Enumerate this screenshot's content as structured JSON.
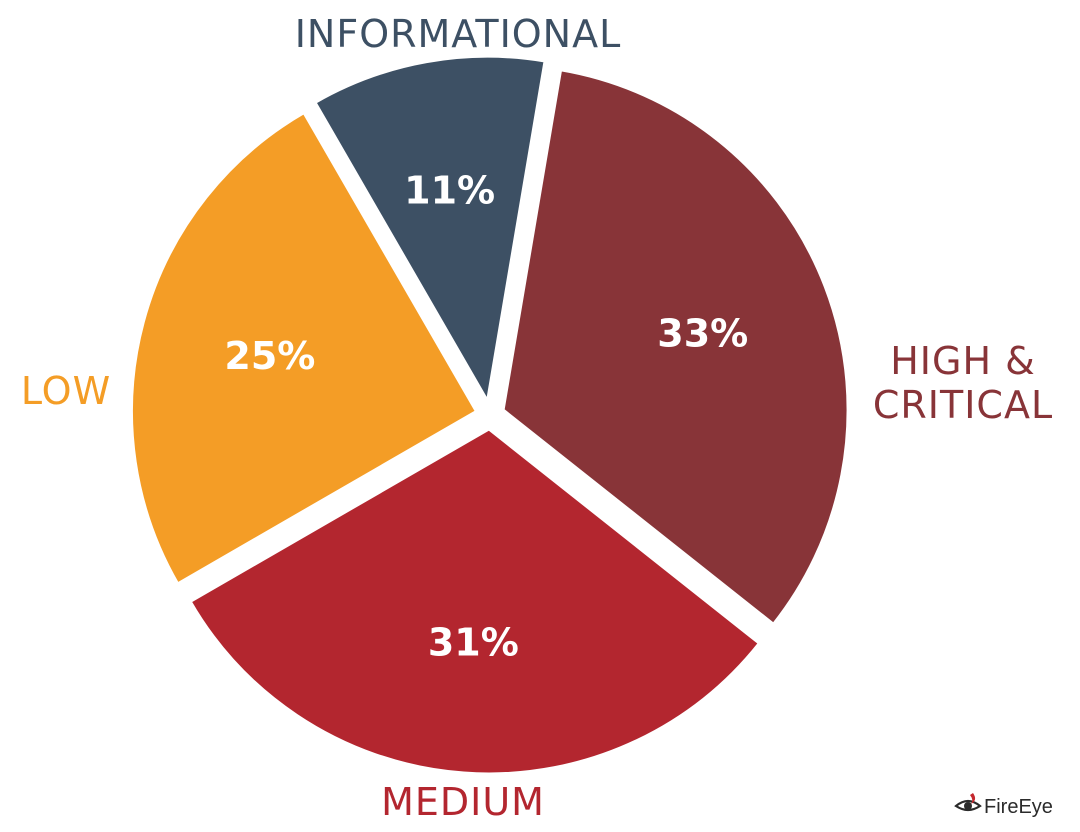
{
  "chart_data": {
    "type": "pie",
    "categories": [
      "INFORMATIONAL",
      "HIGH & CRITICAL",
      "MEDIUM",
      "LOW"
    ],
    "values": [
      11,
      33,
      31,
      25
    ],
    "value_labels": [
      "11%",
      "33%",
      "31%",
      "25%"
    ],
    "colors": [
      "#3d5064",
      "#883438",
      "#b3262f",
      "#f49d26"
    ],
    "exploded": true,
    "title": "",
    "legend": "none"
  },
  "logo": {
    "wordmark": "FireEye"
  }
}
